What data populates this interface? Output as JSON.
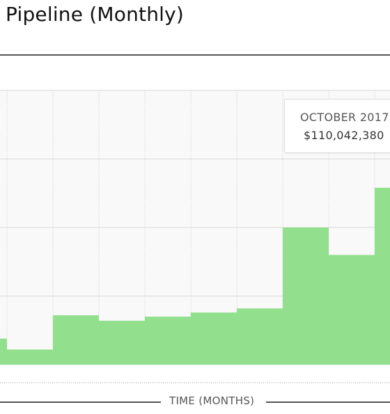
{
  "header": {
    "title": "Pipeline (Monthly)"
  },
  "tooltip": {
    "label": "OCTOBER 2017",
    "value": "$110,042,380"
  },
  "chart_data": {
    "type": "bar",
    "title": "Pipeline (Monthly)",
    "xlabel": "TIME (MONTHS)",
    "ylabel": "",
    "grid": true,
    "bar_color": "#92e08d",
    "ylim": [
      0,
      200
    ],
    "values": [
      19,
      11,
      36,
      32,
      35,
      38,
      41,
      100,
      80,
      129
    ]
  }
}
